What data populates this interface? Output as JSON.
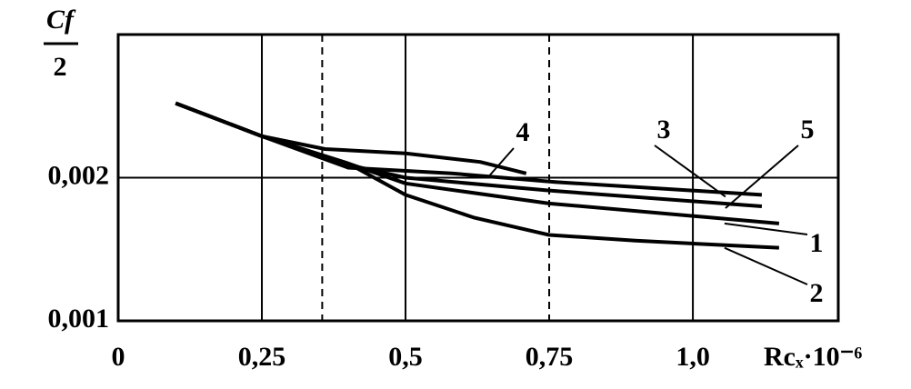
{
  "chart_data": {
    "type": "line",
    "ylabel_numerator": "Cf",
    "ylabel_denominator": "2",
    "xlabel": "Rcₓ·10⁻⁶",
    "xlim": [
      0,
      1.253
    ],
    "ylim": [
      0.001,
      0.003
    ],
    "xticks": [
      0,
      {
        "value": 0.25,
        "label": "0,25"
      },
      {
        "value": 0.5,
        "label": "0,5"
      },
      {
        "value": 0.75,
        "label": "0,75"
      },
      {
        "value": 1.0,
        "label": "1,0"
      }
    ],
    "yticks": [
      {
        "value": 0.001,
        "label": "0,001"
      },
      {
        "value": 0.002,
        "label": "0,002"
      }
    ],
    "dashed_x": [
      0.355,
      0.75
    ],
    "grid": true,
    "color": "#000000",
    "series": [
      {
        "name": "1",
        "x": [
          0.1,
          0.25,
          0.4,
          0.5,
          0.75,
          1.15
        ],
        "values": [
          0.00252,
          0.00229,
          0.0021,
          0.00196,
          0.00182,
          0.00168
        ]
      },
      {
        "name": "2",
        "x": [
          0.1,
          0.25,
          0.4,
          0.5,
          0.62,
          0.75,
          0.9,
          1.15
        ],
        "values": [
          0.00252,
          0.00229,
          0.0021,
          0.00188,
          0.00172,
          0.0016,
          0.00156,
          0.00151
        ]
      },
      {
        "name": "3",
        "x": [
          0.1,
          0.25,
          0.4,
          0.58,
          0.76,
          1.12
        ],
        "values": [
          0.00252,
          0.00229,
          0.00207,
          0.00203,
          0.00197,
          0.00188
        ]
      },
      {
        "name": "4",
        "x": [
          0.1,
          0.25,
          0.36,
          0.5,
          0.63,
          0.71
        ],
        "values": [
          0.00252,
          0.00229,
          0.0022,
          0.00217,
          0.00211,
          0.00203
        ]
      },
      {
        "name": "5",
        "x": [
          0.1,
          0.25,
          0.4,
          0.5,
          0.75,
          1.12
        ],
        "values": [
          0.00252,
          0.00229,
          0.00209,
          0.002,
          0.00191,
          0.0018
        ]
      }
    ]
  }
}
